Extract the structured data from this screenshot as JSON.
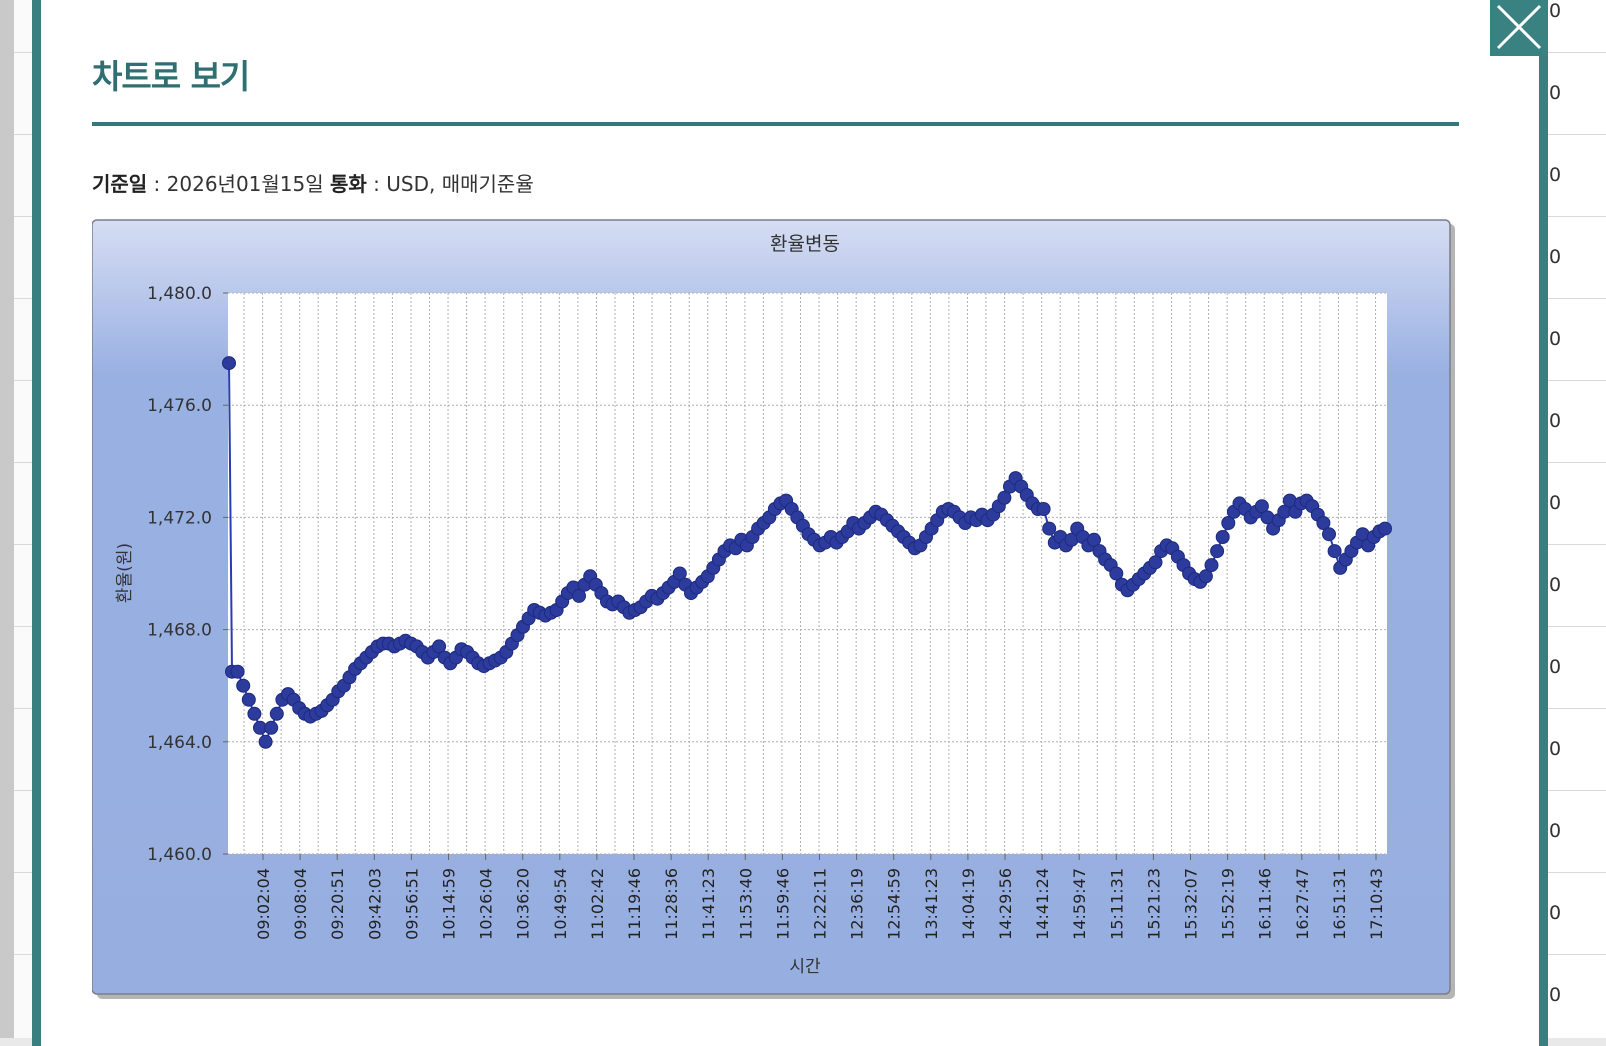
{
  "modal": {
    "title": "차트로 보기",
    "close_icon": "close-icon",
    "accent_color": "#34787a"
  },
  "info": {
    "base_date_label": "기준일",
    "base_date_value": " : 2026년01월15일 ",
    "currency_label": "통화",
    "currency_value": " : USD, 매매기준율"
  },
  "background_right_text": [
    "0",
    "0",
    "0",
    "0",
    "0",
    "0",
    "0",
    "0",
    "0",
    "0",
    "0",
    "0",
    "0"
  ],
  "chart_data": {
    "type": "line",
    "title": "환율변동",
    "xlabel": "시간",
    "ylabel": "환율(원)",
    "ylim": [
      1460,
      1480
    ],
    "yticks": [
      "1,460.0",
      "1,464.0",
      "1,468.0",
      "1,472.0",
      "1,476.0",
      "1,480.0"
    ],
    "ytick_values": [
      1460,
      1464,
      1468,
      1472,
      1476,
      1480
    ],
    "xtick_labels": [
      "09:02:04",
      "09:08:04",
      "09:20:51",
      "09:42:03",
      "09:56:51",
      "10:14:59",
      "10:26:04",
      "10:36:20",
      "10:49:54",
      "11:02:42",
      "11:19:46",
      "11:28:36",
      "11:41:23",
      "11:53:40",
      "11:59:46",
      "12:22:11",
      "12:36:19",
      "12:54:59",
      "13:41:23",
      "14:04:19",
      "14:29:56",
      "14:41:24",
      "14:59:47",
      "15:11:31",
      "15:21:23",
      "15:32:07",
      "15:52:19",
      "16:11:46",
      "16:27:47",
      "16:51:31",
      "17:10:43"
    ],
    "grid": true,
    "colors": {
      "line": "#2b3cb0",
      "marker": "#2d3c9c",
      "plot_bg": "#ffffff",
      "panel_top": "#d3dbf2",
      "panel_bottom": "#97afe0"
    },
    "series": [
      {
        "values": [
          1477.5,
          1466.5,
          1466.5,
          1466.0,
          1465.5,
          1465.0,
          1464.5,
          1464.0,
          1464.5,
          1465.0,
          1465.5,
          1465.7,
          1465.5,
          1465.2,
          1465.0,
          1464.9,
          1465.0,
          1465.1,
          1465.3,
          1465.5,
          1465.8,
          1466.0,
          1466.3,
          1466.6,
          1466.8,
          1467.0,
          1467.2,
          1467.4,
          1467.5,
          1467.5,
          1467.4,
          1467.5,
          1467.6,
          1467.5,
          1467.4,
          1467.2,
          1467.0,
          1467.2,
          1467.4,
          1467.0,
          1466.8,
          1467.0,
          1467.3,
          1467.2,
          1467.0,
          1466.8,
          1466.7,
          1466.8,
          1466.9,
          1467.0,
          1467.2,
          1467.5,
          1467.8,
          1468.1,
          1468.4,
          1468.7,
          1468.6,
          1468.5,
          1468.6,
          1468.7,
          1469.0,
          1469.3,
          1469.5,
          1469.2,
          1469.6,
          1469.9,
          1469.6,
          1469.3,
          1469.0,
          1468.9,
          1469.0,
          1468.8,
          1468.6,
          1468.7,
          1468.8,
          1469.0,
          1469.2,
          1469.1,
          1469.3,
          1469.5,
          1469.7,
          1470.0,
          1469.6,
          1469.3,
          1469.5,
          1469.7,
          1469.9,
          1470.2,
          1470.5,
          1470.8,
          1471.0,
          1470.9,
          1471.2,
          1471.0,
          1471.3,
          1471.6,
          1471.8,
          1472.0,
          1472.3,
          1472.5,
          1472.6,
          1472.3,
          1472.0,
          1471.7,
          1471.4,
          1471.2,
          1471.0,
          1471.1,
          1471.3,
          1471.1,
          1471.3,
          1471.5,
          1471.8,
          1471.6,
          1471.8,
          1472.0,
          1472.2,
          1472.1,
          1471.9,
          1471.7,
          1471.5,
          1471.3,
          1471.1,
          1470.9,
          1471.0,
          1471.3,
          1471.6,
          1471.9,
          1472.2,
          1472.3,
          1472.2,
          1472.0,
          1471.8,
          1472.0,
          1471.9,
          1472.1,
          1471.9,
          1472.1,
          1472.4,
          1472.7,
          1473.1,
          1473.4,
          1473.1,
          1472.8,
          1472.5,
          1472.3,
          1472.3,
          1471.6,
          1471.1,
          1471.3,
          1471.0,
          1471.2,
          1471.6,
          1471.3,
          1471.0,
          1471.2,
          1470.8,
          1470.5,
          1470.3,
          1470.0,
          1469.6,
          1469.4,
          1469.6,
          1469.8,
          1470.0,
          1470.2,
          1470.4,
          1470.8,
          1471.0,
          1470.9,
          1470.6,
          1470.3,
          1470.0,
          1469.8,
          1469.7,
          1469.9,
          1470.3,
          1470.8,
          1471.3,
          1471.8,
          1472.2,
          1472.5,
          1472.3,
          1472.0,
          1472.2,
          1472.4,
          1472.0,
          1471.6,
          1471.9,
          1472.2,
          1472.6,
          1472.2,
          1472.5,
          1472.6,
          1472.4,
          1472.1,
          1471.8,
          1471.4,
          1470.8,
          1470.2,
          1470.5,
          1470.8,
          1471.1,
          1471.4,
          1471.0,
          1471.3,
          1471.5,
          1471.6
        ]
      }
    ]
  }
}
